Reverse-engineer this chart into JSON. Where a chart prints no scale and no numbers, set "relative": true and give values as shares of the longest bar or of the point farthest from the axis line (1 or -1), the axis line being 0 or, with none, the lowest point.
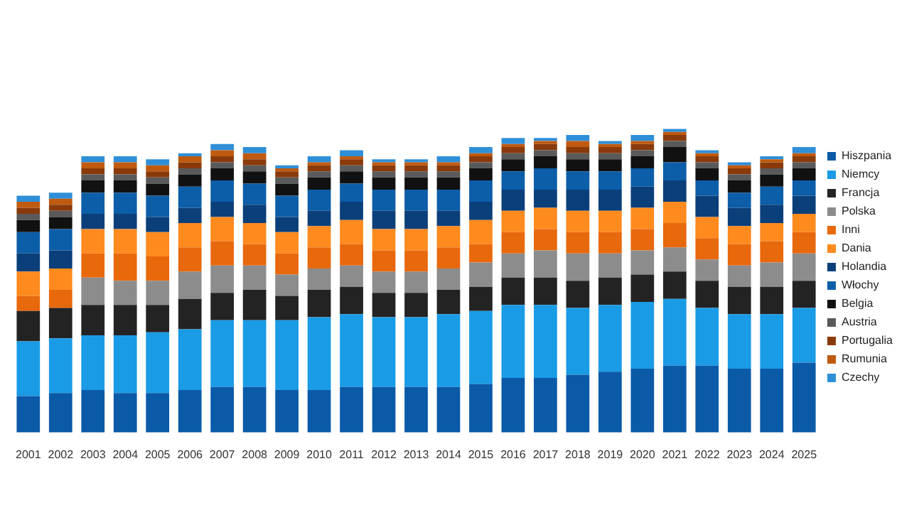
{
  "chart_data": {
    "type": "bar",
    "stacked": true,
    "relative": true,
    "legend": "right",
    "categories": [
      "2001",
      "2002",
      "2003",
      "2004",
      "2005",
      "2006",
      "2007",
      "2008",
      "2009",
      "2010",
      "2011",
      "2012",
      "2013",
      "2014",
      "2015",
      "2016",
      "2017",
      "2018",
      "2019",
      "2020",
      "2021",
      "2022",
      "2023",
      "2024",
      "2025"
    ],
    "series": [
      {
        "name": "Hiszpania",
        "color": "#0a5aa8",
        "values": [
          0.12,
          0.13,
          0.14,
          0.13,
          0.13,
          0.14,
          0.15,
          0.15,
          0.14,
          0.14,
          0.15,
          0.15,
          0.15,
          0.15,
          0.16,
          0.18,
          0.18,
          0.19,
          0.2,
          0.21,
          0.22,
          0.22,
          0.21,
          0.21,
          0.23
        ]
      },
      {
        "name": "Niemcy",
        "color": "#1a9be6",
        "values": [
          0.18,
          0.18,
          0.18,
          0.19,
          0.2,
          0.2,
          0.22,
          0.22,
          0.23,
          0.24,
          0.24,
          0.23,
          0.23,
          0.24,
          0.24,
          0.24,
          0.24,
          0.22,
          0.22,
          0.22,
          0.22,
          0.19,
          0.18,
          0.18,
          0.18
        ]
      },
      {
        "name": "Francja",
        "color": "#232323",
        "values": [
          0.1,
          0.1,
          0.1,
          0.1,
          0.09,
          0.1,
          0.09,
          0.1,
          0.08,
          0.09,
          0.09,
          0.08,
          0.08,
          0.08,
          0.08,
          0.09,
          0.09,
          0.09,
          0.09,
          0.09,
          0.09,
          0.09,
          0.09,
          0.09,
          0.09
        ]
      },
      {
        "name": "Polska",
        "color": "#8c8c8c",
        "values": [
          null,
          null,
          0.09,
          0.08,
          0.08,
          0.09,
          0.09,
          0.08,
          0.07,
          0.07,
          0.07,
          0.07,
          0.07,
          0.07,
          0.08,
          0.08,
          0.09,
          0.09,
          0.08,
          0.08,
          0.08,
          0.07,
          0.07,
          0.08,
          0.09
        ]
      },
      {
        "name": "Inni",
        "color": "#e8680c",
        "values": [
          0.05,
          0.06,
          0.08,
          0.09,
          0.08,
          0.08,
          0.08,
          0.07,
          0.07,
          0.07,
          0.07,
          0.07,
          0.07,
          0.07,
          0.06,
          0.07,
          0.07,
          0.07,
          0.07,
          0.07,
          0.08,
          0.07,
          0.07,
          0.07,
          0.07
        ]
      },
      {
        "name": "Dania",
        "color": "#ff8a1e",
        "values": [
          0.08,
          0.07,
          0.08,
          0.08,
          0.08,
          0.08,
          0.08,
          0.07,
          0.07,
          0.07,
          0.08,
          0.07,
          0.07,
          0.07,
          0.08,
          0.07,
          0.07,
          0.07,
          0.07,
          0.07,
          0.07,
          0.07,
          0.06,
          0.06,
          0.06
        ]
      },
      {
        "name": "Holandia",
        "color": "#0b3f7a",
        "values": [
          0.06,
          0.06,
          0.05,
          0.05,
          0.05,
          0.05,
          0.05,
          0.06,
          0.05,
          0.05,
          0.06,
          0.06,
          0.06,
          0.05,
          0.06,
          0.07,
          0.06,
          0.07,
          0.07,
          0.07,
          0.07,
          0.07,
          0.06,
          0.06,
          0.06
        ]
      },
      {
        "name": "Włochy",
        "color": "#0c5ea8",
        "values": [
          0.07,
          0.07,
          0.07,
          0.07,
          0.07,
          0.07,
          0.07,
          0.07,
          0.07,
          0.07,
          0.06,
          0.07,
          0.07,
          0.07,
          0.07,
          0.06,
          0.07,
          0.06,
          0.06,
          0.06,
          0.06,
          0.05,
          0.05,
          0.06,
          0.05
        ]
      },
      {
        "name": "Belgia",
        "color": "#111111",
        "values": [
          0.04,
          0.04,
          0.04,
          0.04,
          0.04,
          0.04,
          0.04,
          0.04,
          0.04,
          0.04,
          0.04,
          0.04,
          0.04,
          0.04,
          0.04,
          0.04,
          0.04,
          0.04,
          0.04,
          0.04,
          0.05,
          0.04,
          0.04,
          0.04,
          0.04
        ]
      },
      {
        "name": "Austria",
        "color": "#5a5a5a",
        "values": [
          0.02,
          0.02,
          0.02,
          0.02,
          0.02,
          0.02,
          0.02,
          0.02,
          0.02,
          0.02,
          0.02,
          0.02,
          0.02,
          0.02,
          0.02,
          0.02,
          0.02,
          0.02,
          0.02,
          0.02,
          0.02,
          0.02,
          0.02,
          0.02,
          0.02
        ]
      },
      {
        "name": "Portugalia",
        "color": "#8a3a0a",
        "values": [
          0.02,
          0.02,
          0.02,
          0.02,
          0.02,
          0.02,
          0.02,
          0.02,
          0.02,
          0.02,
          0.02,
          0.02,
          0.02,
          0.02,
          0.02,
          0.02,
          0.02,
          0.02,
          0.02,
          0.02,
          0.02,
          0.02,
          0.02,
          0.02,
          0.02
        ]
      },
      {
        "name": "Rumunia",
        "color": "#c05a10",
        "values": [
          0.02,
          0.02,
          0.02,
          0.02,
          0.02,
          0.02,
          0.02,
          0.02,
          0.01,
          0.01,
          0.01,
          0.01,
          0.01,
          0.01,
          0.01,
          0.01,
          0.01,
          0.02,
          0.01,
          0.01,
          0.01,
          0.01,
          0.01,
          0.01,
          0.01
        ]
      },
      {
        "name": "Czechy",
        "color": "#2e8fd8",
        "values": [
          0.02,
          0.02,
          0.02,
          0.02,
          0.02,
          0.01,
          0.02,
          0.02,
          0.01,
          0.02,
          0.02,
          0.01,
          0.01,
          0.02,
          0.02,
          0.02,
          0.01,
          0.02,
          0.01,
          0.02,
          0.01,
          0.01,
          0.01,
          0.01,
          0.02
        ]
      }
    ]
  }
}
